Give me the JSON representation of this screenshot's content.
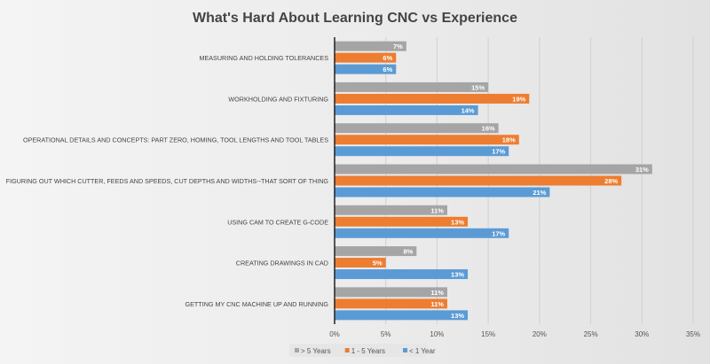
{
  "chart_data": {
    "type": "bar",
    "orientation": "horizontal",
    "title": "What's Hard About Learning CNC vs Experience",
    "categories": [
      "MEASURING AND HOLDING TOLERANCES",
      "WORKHOLDING AND FIXTURING",
      "OPERATIONAL DETAILS AND CONCEPTS:  PART ZERO, HOMING, TOOL LENGTHS AND TOOL TABLES",
      "FIGURING OUT WHICH CUTTER, FEEDS AND SPEEDS, CUT DEPTHS AND WIDTHS--THAT SORT OF THING",
      "USING CAM TO CREATE G-CODE",
      "CREATING DRAWINGS IN CAD",
      "GETTING MY CNC MACHINE UP AND RUNNING"
    ],
    "series": [
      {
        "name": "> 5 Years",
        "color": "#a5a5a5",
        "values": [
          7,
          15,
          16,
          31,
          11,
          8,
          11
        ]
      },
      {
        "name": "1 - 5 Years",
        "color": "#ed7d31",
        "values": [
          6,
          19,
          18,
          28,
          13,
          5,
          11
        ]
      },
      {
        "name": "< 1 Year",
        "color": "#5b9bd5",
        "values": [
          6,
          14,
          17,
          21,
          17,
          13,
          13
        ]
      }
    ],
    "xlim": [
      0,
      35
    ],
    "xticks": [
      "0%",
      "5%",
      "10%",
      "15%",
      "20%",
      "25%",
      "30%",
      "35%"
    ],
    "value_suffix": "%",
    "grid": true,
    "legend": "bottom-left"
  }
}
